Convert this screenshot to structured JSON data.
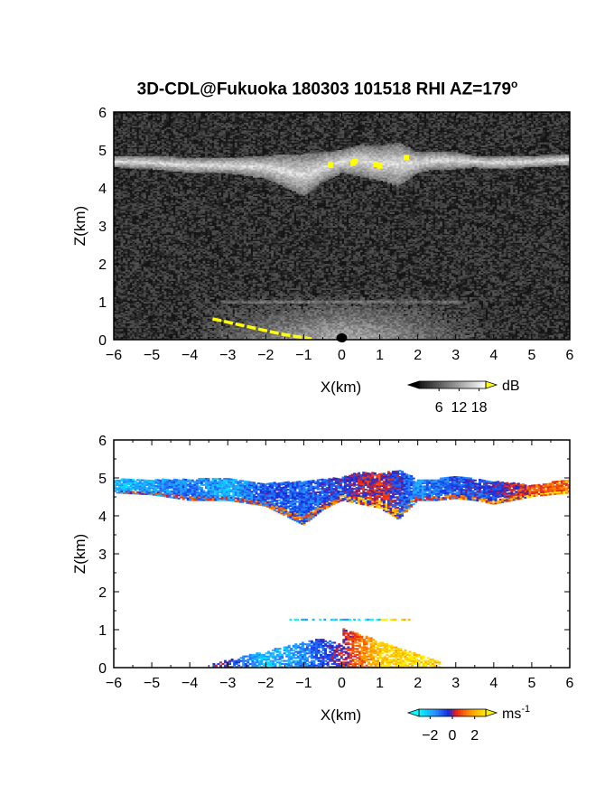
{
  "title": "3D-CDL@Fukuoka 180303 101518 RHI AZ=179",
  "title_sup": "o",
  "chart_data": [
    {
      "type": "heatmap",
      "name_label": "",
      "xlabel": "X(km)",
      "ylabel": "Z(km)",
      "xlim": [
        -6,
        6
      ],
      "ylim": [
        0,
        6
      ],
      "xticks": [
        "-6",
        "-5",
        "-4",
        "-3",
        "-2",
        "-1",
        "0",
        "1",
        "2",
        "3",
        "4",
        "5",
        "6"
      ],
      "yticks": [
        "0",
        "1",
        "2",
        "3",
        "4",
        "5",
        "6"
      ],
      "colorbar": {
        "unit": "dB",
        "ticks": [
          "6",
          "12",
          "18"
        ],
        "tick_values": [
          6,
          12,
          18
        ],
        "range": [
          0,
          20
        ],
        "colormap": "grayscale"
      },
      "layer_top": [
        [
          -6,
          4.85
        ],
        [
          -5,
          4.85
        ],
        [
          -4,
          4.8
        ],
        [
          -3,
          4.8
        ],
        [
          -2,
          4.85
        ],
        [
          -1,
          4.9
        ],
        [
          -0.5,
          4.95
        ],
        [
          0,
          5.0
        ],
        [
          0.5,
          5.15
        ],
        [
          1,
          5.1
        ],
        [
          1.5,
          5.2
        ],
        [
          2,
          4.95
        ],
        [
          2.5,
          4.95
        ],
        [
          3,
          4.95
        ],
        [
          3.5,
          4.85
        ],
        [
          4,
          4.85
        ],
        [
          5,
          4.85
        ],
        [
          6,
          4.9
        ]
      ],
      "layer_bottom": [
        [
          -6,
          4.55
        ],
        [
          -5,
          4.5
        ],
        [
          -4,
          4.4
        ],
        [
          -3,
          4.4
        ],
        [
          -2,
          4.25
        ],
        [
          -1,
          3.8
        ],
        [
          -0.5,
          4.15
        ],
        [
          0,
          4.4
        ],
        [
          0.5,
          4.3
        ],
        [
          1,
          4.2
        ],
        [
          1.5,
          4.05
        ],
        [
          2,
          4.4
        ],
        [
          2.5,
          4.5
        ],
        [
          3,
          4.5
        ],
        [
          3.5,
          4.55
        ],
        [
          4,
          4.5
        ],
        [
          5,
          4.55
        ],
        [
          6,
          4.6
        ]
      ],
      "highlight_points": [
        [
          -0.3,
          4.6
        ],
        [
          0.3,
          4.65
        ],
        [
          0.35,
          4.7
        ],
        [
          0.9,
          4.62
        ],
        [
          1.0,
          4.58
        ],
        [
          1.7,
          4.8
        ]
      ],
      "ground_clutter_line": [
        [
          -3.4,
          0.55
        ],
        [
          -2.5,
          0.35
        ],
        [
          -1.6,
          0.15
        ],
        [
          -0.8,
          0.02
        ]
      ],
      "near_field_max_height": 1.3,
      "noise_level": 3
    },
    {
      "type": "heatmap",
      "xlabel": "X(km)",
      "ylabel": "Z(km)",
      "xlim": [
        -6,
        6
      ],
      "ylim": [
        0,
        6
      ],
      "xticks": [
        "-6",
        "-5",
        "-4",
        "-3",
        "-2",
        "-1",
        "0",
        "1",
        "2",
        "3",
        "4",
        "5",
        "6"
      ],
      "yticks": [
        "0",
        "1",
        "2",
        "3",
        "4",
        "5",
        "6"
      ],
      "colorbar": {
        "unit": "ms",
        "unit_sup": "-1",
        "ticks": [
          "-2",
          "0",
          "2"
        ],
        "tick_values": [
          -2,
          0,
          2
        ],
        "range": [
          -3,
          3
        ],
        "colormap": "cyan-blue-red-yellow"
      },
      "layer_top": [
        [
          -6,
          4.95
        ],
        [
          -5,
          4.95
        ],
        [
          -4,
          4.95
        ],
        [
          -3,
          5.0
        ],
        [
          -2,
          4.85
        ],
        [
          -1,
          4.9
        ],
        [
          -0.5,
          4.95
        ],
        [
          0,
          5.0
        ],
        [
          0.5,
          5.15
        ],
        [
          1,
          5.1
        ],
        [
          1.5,
          5.2
        ],
        [
          2,
          4.95
        ],
        [
          2.5,
          4.95
        ],
        [
          3,
          5.05
        ],
        [
          3.5,
          4.95
        ],
        [
          4,
          4.9
        ],
        [
          5,
          4.8
        ],
        [
          6,
          4.95
        ]
      ],
      "layer_bottom": [
        [
          -6,
          4.6
        ],
        [
          -5,
          4.55
        ],
        [
          -4,
          4.4
        ],
        [
          -3,
          4.4
        ],
        [
          -2,
          4.25
        ],
        [
          -1,
          3.75
        ],
        [
          -0.5,
          4.15
        ],
        [
          0,
          4.4
        ],
        [
          0.5,
          4.3
        ],
        [
          1,
          4.2
        ],
        [
          1.5,
          3.9
        ],
        [
          2,
          4.4
        ],
        [
          2.5,
          4.4
        ],
        [
          3,
          4.45
        ],
        [
          3.5,
          4.4
        ],
        [
          4,
          4.3
        ],
        [
          5,
          4.5
        ],
        [
          6,
          4.6
        ]
      ],
      "layer_velocity": [
        [
          -6,
          -2.2
        ],
        [
          -4,
          -1.2
        ],
        [
          -3,
          -2.0
        ],
        [
          -2,
          -0.8
        ],
        [
          -1,
          -1.0
        ],
        [
          0,
          -0.6
        ],
        [
          1,
          0.4
        ],
        [
          2,
          -1.5
        ],
        [
          3,
          -0.8
        ],
        [
          4,
          -0.6
        ],
        [
          5,
          0.8
        ],
        [
          6,
          1.2
        ]
      ],
      "low_level_region": {
        "x_range": [
          -3.4,
          2.6
        ],
        "z_range": [
          0,
          0.75
        ],
        "velocity_by_x": [
          [
            -3,
            -0.4
          ],
          [
            -2,
            -2.2
          ],
          [
            -1,
            -1.4
          ],
          [
            0,
            0.0
          ],
          [
            1,
            2.4
          ],
          [
            2,
            2.6
          ]
        ]
      },
      "aerosol_band": {
        "x_range": [
          -1.5,
          1.8
        ],
        "z": 1.25,
        "velocity": -2.4
      }
    }
  ]
}
